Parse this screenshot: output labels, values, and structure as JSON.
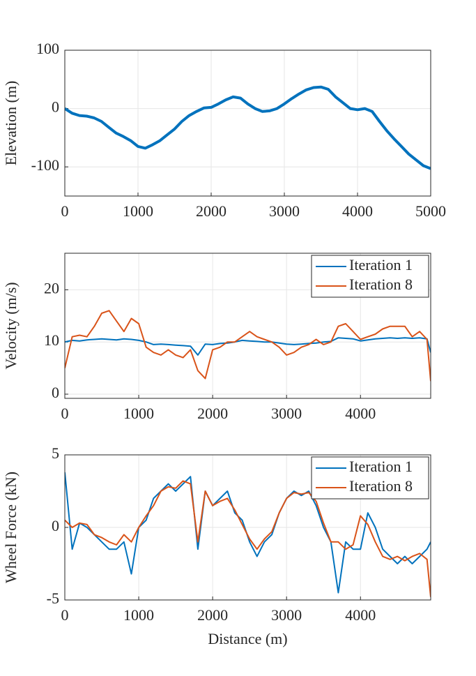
{
  "chart_data": [
    {
      "type": "line",
      "ylabel": "Elevation (m)",
      "x": [
        0,
        100,
        200,
        300,
        400,
        500,
        600,
        700,
        800,
        900,
        1000,
        1100,
        1200,
        1300,
        1400,
        1500,
        1600,
        1700,
        1800,
        1900,
        2000,
        2100,
        2200,
        2300,
        2400,
        2500,
        2600,
        2700,
        2800,
        2900,
        3000,
        3100,
        3200,
        3300,
        3400,
        3500,
        3600,
        3700,
        3800,
        3900,
        4000,
        4100,
        4200,
        4300,
        4400,
        4500,
        4600,
        4700,
        4800,
        4900,
        5000
      ],
      "series": [
        {
          "color": "#0072bd",
          "values": [
            0,
            -8,
            -12,
            -13,
            -16,
            -22,
            -32,
            -42,
            -48,
            -55,
            -65,
            -68,
            -62,
            -55,
            -45,
            -35,
            -22,
            -12,
            -5,
            1,
            2,
            8,
            15,
            20,
            18,
            8,
            0,
            -5,
            -4,
            0,
            8,
            17,
            25,
            32,
            36,
            37,
            33,
            20,
            10,
            0,
            -2,
            0,
            -5,
            -22,
            -38,
            -52,
            -65,
            -78,
            -88,
            -98,
            -103
          ]
        }
      ],
      "xlim": [
        0,
        5000
      ],
      "ylim": [
        -150,
        100
      ],
      "xticks": [
        0,
        1000,
        2000,
        3000,
        4000,
        5000
      ],
      "yticks": [
        -100,
        0,
        100
      ],
      "grid": true
    },
    {
      "type": "line",
      "ylabel": "Velocity (m/s)",
      "x": [
        0,
        100,
        200,
        300,
        400,
        500,
        600,
        700,
        800,
        900,
        1000,
        1100,
        1200,
        1300,
        1400,
        1500,
        1600,
        1700,
        1800,
        1900,
        2000,
        2100,
        2200,
        2300,
        2400,
        2500,
        2600,
        2700,
        2800,
        2900,
        3000,
        3100,
        3200,
        3300,
        3400,
        3500,
        3600,
        3700,
        3800,
        3900,
        4000,
        4100,
        4200,
        4300,
        4400,
        4500,
        4600,
        4700,
        4800,
        4900,
        4950
      ],
      "series": [
        {
          "name": "Iteration 1",
          "color": "#0072bd",
          "values": [
            10,
            10.3,
            10.2,
            10.4,
            10.5,
            10.6,
            10.5,
            10.4,
            10.6,
            10.5,
            10.3,
            10,
            9.5,
            9.6,
            9.5,
            9.4,
            9.3,
            9.2,
            7.5,
            9.6,
            9.5,
            9.7,
            9.8,
            10,
            10.3,
            10.2,
            10.1,
            10,
            10,
            9.8,
            9.6,
            9.5,
            9.6,
            9.7,
            9.8,
            10,
            10.1,
            10.8,
            10.7,
            10.6,
            10.2,
            10.4,
            10.6,
            10.7,
            10.8,
            10.7,
            10.8,
            10.7,
            10.8,
            10.6,
            8
          ]
        },
        {
          "name": "Iteration 8",
          "color": "#d95319",
          "values": [
            5,
            11,
            11.3,
            11,
            13,
            15.5,
            16,
            14,
            12,
            14.5,
            13.5,
            9,
            8,
            7.5,
            8.5,
            7.5,
            7,
            8.5,
            4.5,
            3,
            8.5,
            9,
            10,
            10,
            11,
            12,
            11,
            10.5,
            10,
            9,
            7.5,
            8,
            9,
            9.5,
            10.5,
            9.5,
            10,
            13,
            13.5,
            12,
            10.5,
            11,
            11.5,
            12.5,
            13,
            13,
            13,
            11,
            12,
            10.5,
            2.5
          ]
        }
      ],
      "xlim": [
        0,
        4950
      ],
      "ylim": [
        -0.8,
        27
      ],
      "xticks": [
        0,
        1000,
        2000,
        3000,
        4000
      ],
      "yticks": [
        0,
        10,
        20
      ],
      "grid": true,
      "legend": "northeast"
    },
    {
      "type": "line",
      "ylabel": "Wheel Force (kN)",
      "xlabel": "Distance (m)",
      "x": [
        0,
        100,
        200,
        300,
        400,
        500,
        600,
        700,
        800,
        900,
        1000,
        1100,
        1200,
        1300,
        1400,
        1500,
        1600,
        1700,
        1800,
        1900,
        2000,
        2100,
        2200,
        2300,
        2400,
        2500,
        2600,
        2700,
        2800,
        2900,
        3000,
        3100,
        3200,
        3300,
        3400,
        3500,
        3600,
        3700,
        3800,
        3900,
        4000,
        4100,
        4200,
        4300,
        4400,
        4500,
        4600,
        4700,
        4800,
        4900,
        4950
      ],
      "series": [
        {
          "name": "Iteration 1",
          "color": "#0072bd",
          "values": [
            3.8,
            -1.5,
            0.3,
            0,
            -0.5,
            -1,
            -1.5,
            -1.5,
            -1,
            -3.2,
            0,
            0.5,
            2,
            2.5,
            3,
            2.5,
            3,
            3.5,
            -1.5,
            2.5,
            1.5,
            2,
            2.5,
            1,
            0.5,
            -1,
            -2,
            -1,
            -0.5,
            1,
            2,
            2.5,
            2.2,
            2.5,
            1.5,
            0,
            -1,
            -4.5,
            -1,
            -1.5,
            -1.5,
            1,
            0,
            -1.5,
            -2,
            -2.5,
            -2,
            -2.5,
            -2,
            -1.5,
            -1
          ]
        },
        {
          "name": "Iteration 8",
          "color": "#d95319",
          "values": [
            0.5,
            0,
            0.3,
            0.2,
            -0.5,
            -0.7,
            -1,
            -1.2,
            -0.5,
            -1,
            0,
            0.8,
            1.5,
            2.5,
            2.8,
            2.7,
            3.2,
            3,
            -1,
            2.5,
            1.5,
            1.8,
            2,
            1.2,
            0.2,
            -0.8,
            -1.5,
            -0.8,
            -0.3,
            1,
            2,
            2.4,
            2.3,
            2.4,
            1.8,
            0.3,
            -1,
            -1,
            -1.5,
            -1.2,
            0.8,
            0.2,
            -1,
            -2,
            -2.2,
            -2,
            -2.3,
            -2,
            -1.8,
            -2.2,
            -4.8
          ]
        }
      ],
      "xlim": [
        0,
        4950
      ],
      "ylim": [
        -5,
        5
      ],
      "xticks": [
        0,
        1000,
        2000,
        3000,
        4000
      ],
      "yticks": [
        -5,
        0,
        5
      ],
      "grid": true,
      "legend": "northeast"
    }
  ]
}
